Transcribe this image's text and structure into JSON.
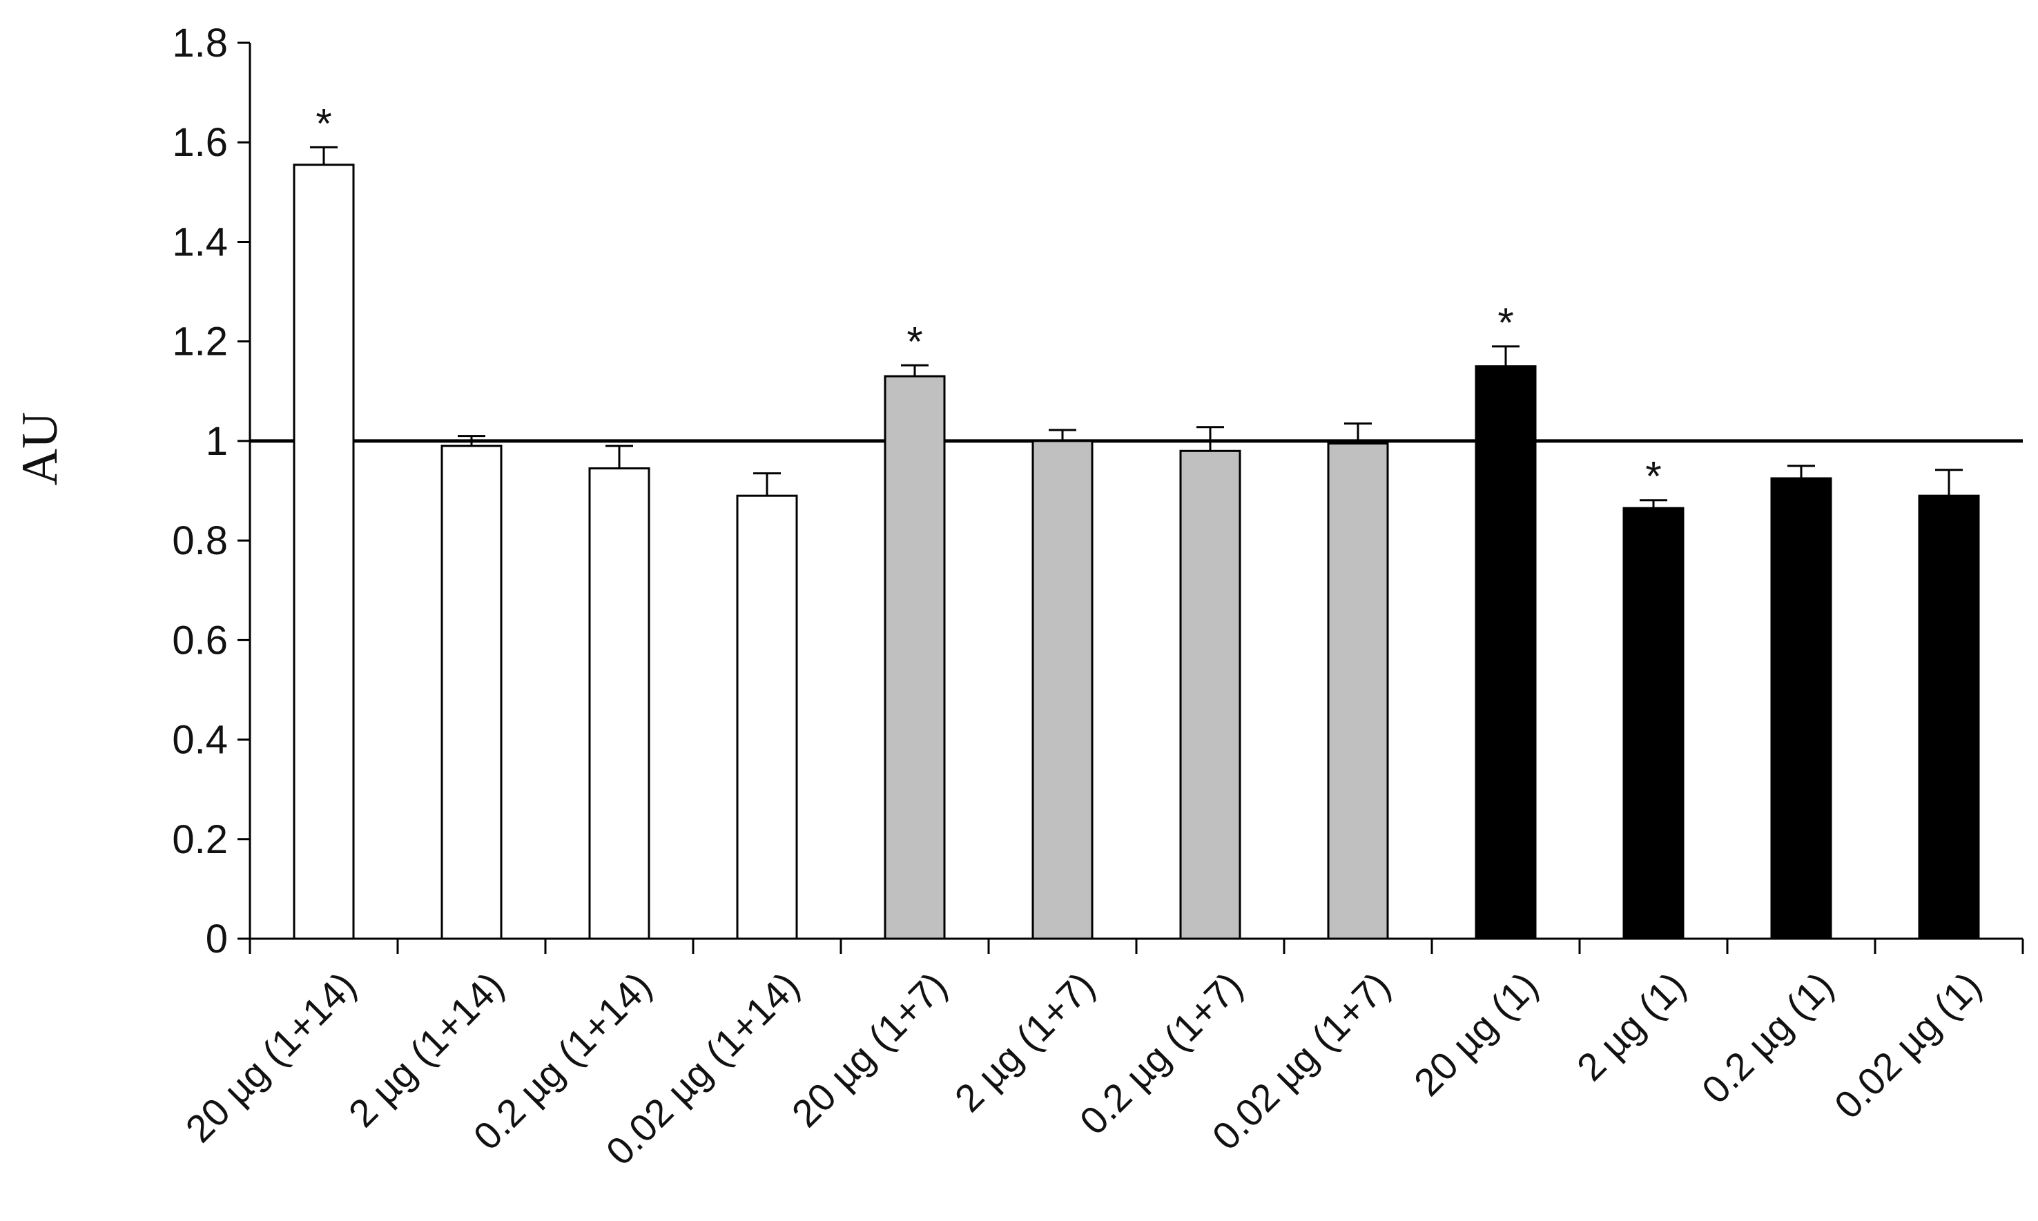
{
  "chart_data": {
    "type": "bar",
    "title": "",
    "xlabel": "",
    "ylabel": "AU",
    "ylim": [
      0,
      1.8
    ],
    "yticks": [
      0,
      0.2,
      0.4,
      0.6,
      0.8,
      1,
      1.2,
      1.4,
      1.6,
      1.8
    ],
    "ytick_labels": [
      "0",
      "0.2",
      "0.4",
      "0.6",
      "0.8",
      "1",
      "1.2",
      "1.4",
      "1.6",
      "1.8"
    ],
    "reference_line": 1,
    "grid": false,
    "legend": "none",
    "categories": [
      "20 µg (1+14)",
      "2 µg (1+14)",
      "0.2 µg (1+14)",
      "0.02 µg (1+14)",
      "20 µg (1+7)",
      "2 µg (1+7)",
      "0.2 µg (1+7)",
      "0.02 µg (1+7)",
      "20 µg (1)",
      "2 µg (1)",
      "0.2 µg (1)",
      "0.02 µg (1)"
    ],
    "values": [
      1.555,
      0.99,
      0.945,
      0.89,
      1.13,
      1.0,
      0.98,
      0.995,
      1.15,
      0.865,
      0.925,
      0.89
    ],
    "errors": [
      0.035,
      0.02,
      0.045,
      0.045,
      0.022,
      0.022,
      0.048,
      0.04,
      0.04,
      0.016,
      0.025,
      0.052
    ],
    "significant": [
      true,
      false,
      false,
      false,
      true,
      false,
      false,
      false,
      true,
      true,
      false,
      false
    ],
    "significance_marker": "*",
    "bar_colors": [
      "#ffffff",
      "#ffffff",
      "#ffffff",
      "#ffffff",
      "#c0c0c0",
      "#c0c0c0",
      "#c0c0c0",
      "#c0c0c0",
      "#000000",
      "#000000",
      "#000000",
      "#000000"
    ],
    "bar_edge_color": "#000000"
  }
}
